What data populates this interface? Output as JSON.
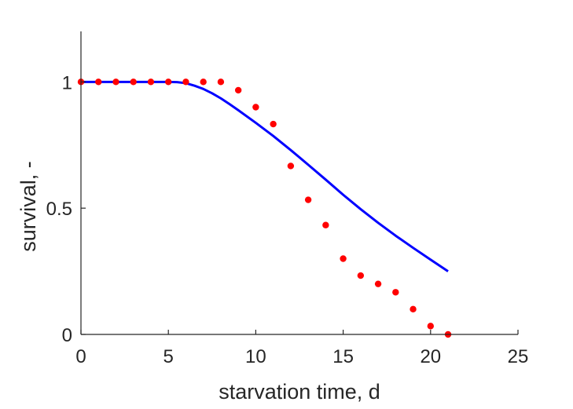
{
  "chart_data": {
    "type": "scatter",
    "xlabel": "starvation time, d",
    "ylabel": "survival, -",
    "xlim": [
      0,
      25
    ],
    "ylim": [
      0,
      1.2
    ],
    "xticks": [
      0,
      5,
      10,
      15,
      20,
      25
    ],
    "yticks": [
      0,
      0.5,
      1
    ],
    "xtick_labels": [
      "0",
      "5",
      "10",
      "15",
      "20",
      "25"
    ],
    "ytick_labels": [
      "0",
      "0.5",
      "1"
    ],
    "grid": false,
    "legend": "none",
    "series": [
      {
        "kind": "line",
        "color": "#0000ff",
        "x": [
          0,
          1,
          2,
          3,
          4,
          5,
          5.5,
          6,
          6.5,
          7,
          7.5,
          8,
          8.5,
          9,
          10,
          11,
          12,
          13,
          14,
          15,
          16,
          17,
          18,
          19,
          20,
          21
        ],
        "y": [
          1,
          1,
          1,
          1,
          1,
          1,
          0.999,
          0.995,
          0.985,
          0.972,
          0.955,
          0.935,
          0.912,
          0.888,
          0.838,
          0.786,
          0.73,
          0.672,
          0.613,
          0.553,
          0.496,
          0.442,
          0.391,
          0.343,
          0.296,
          0.25
        ]
      },
      {
        "kind": "scatter",
        "color": "#ff0000",
        "x": [
          0,
          1,
          2,
          3,
          4,
          5,
          6,
          7,
          8,
          9,
          10,
          11,
          12,
          13,
          14,
          15,
          16,
          17,
          18,
          19,
          20,
          21
        ],
        "y": [
          1,
          1,
          1,
          1,
          1,
          1,
          1,
          1,
          1,
          0.967,
          0.9,
          0.833,
          0.667,
          0.533,
          0.433,
          0.3,
          0.233,
          0.2,
          0.167,
          0.1,
          0.033,
          0
        ]
      }
    ]
  }
}
